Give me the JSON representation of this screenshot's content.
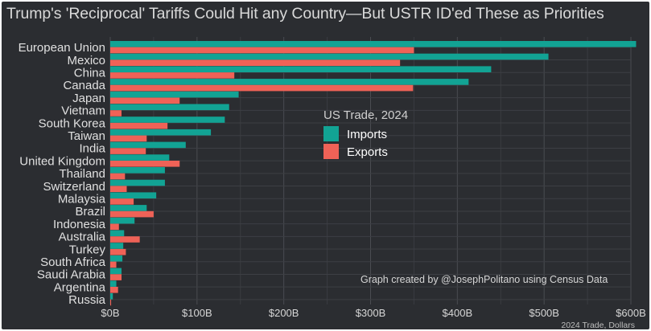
{
  "chart_data": {
    "type": "bar",
    "orientation": "horizontal",
    "title": "Trump's 'Reciprocal' Tariffs Could Hit any Country—But USTR ID'ed These as Priorities",
    "categories": [
      "European Union",
      "Mexico",
      "China",
      "Canada",
      "Japan",
      "Vietnam",
      "South Korea",
      "Taiwan",
      "India",
      "United Kingdom",
      "Thailand",
      "Switzerland",
      "Malaysia",
      "Brazil",
      "Indonesia",
      "Australia",
      "Turkey",
      "South Africa",
      "Saudi Arabia",
      "Argentina",
      "Russia"
    ],
    "series": [
      {
        "name": "Imports",
        "color": "#12a394",
        "values": [
          606,
          505,
          439,
          413,
          148,
          137,
          132,
          116,
          87,
          68,
          63,
          63,
          53,
          42,
          28,
          16,
          15,
          14,
          13,
          7,
          3
        ]
      },
      {
        "name": "Exports",
        "color": "#ef6257",
        "values": [
          350,
          334,
          143,
          349,
          80,
          13,
          66,
          42,
          41,
          80,
          17,
          19,
          27,
          50,
          10,
          34,
          18,
          7,
          13,
          9,
          1
        ]
      }
    ],
    "xlim": [
      0,
      600
    ],
    "x_ticks": [
      0,
      100,
      200,
      300,
      400,
      500,
      600
    ],
    "x_tick_labels": [
      "$0B",
      "$100B",
      "$200B",
      "$300B",
      "$400B",
      "$500B",
      "$600B"
    ],
    "xlabel": "",
    "ylabel": "",
    "legend": {
      "title": "US Trade, 2024",
      "placement": "center-right",
      "items": [
        "Imports",
        "Exports"
      ]
    },
    "annotation": "Graph created by @JosephPolitano using Census Data",
    "caption": "2024 Trade, Dollars",
    "grid": true,
    "background": "#2b2d31"
  }
}
